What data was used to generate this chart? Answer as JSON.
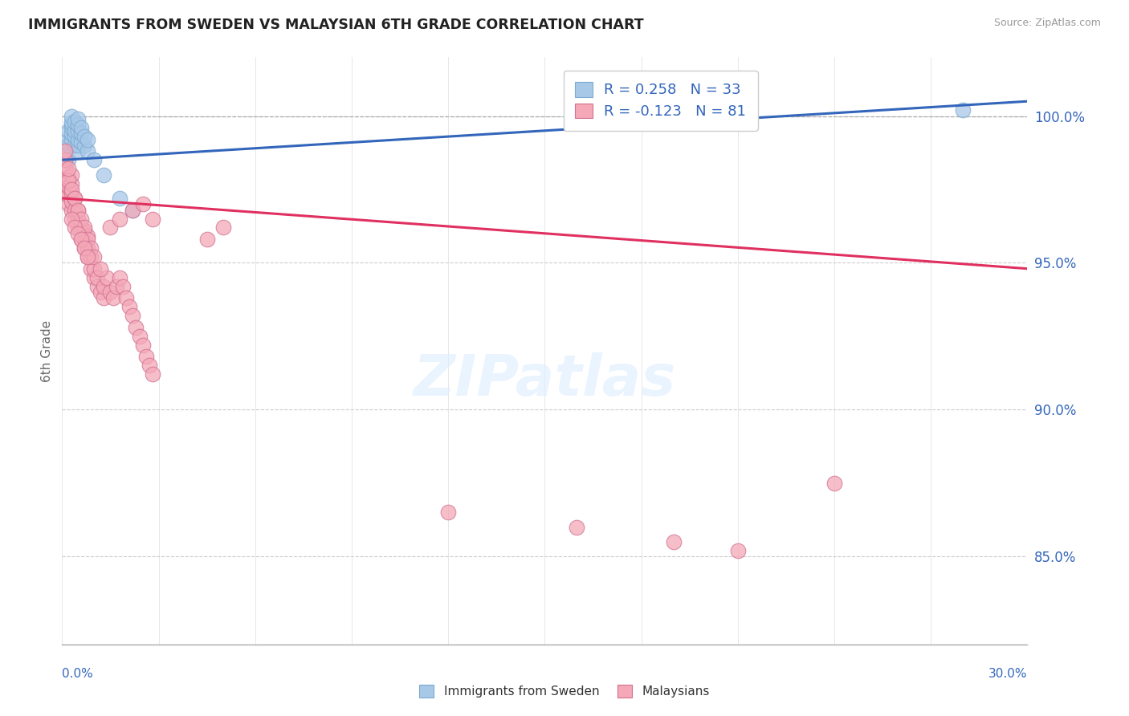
{
  "title": "IMMIGRANTS FROM SWEDEN VS MALAYSIAN 6TH GRADE CORRELATION CHART",
  "source": "Source: ZipAtlas.com",
  "ylabel": "6th Grade",
  "y_ticks": [
    85.0,
    90.0,
    95.0,
    100.0
  ],
  "x_min": 0.0,
  "x_max": 0.3,
  "y_min": 82.0,
  "y_max": 102.0,
  "blue_R": 0.258,
  "blue_N": 33,
  "pink_R": -0.123,
  "pink_N": 81,
  "blue_color": "#a8c8e8",
  "blue_line_color": "#3366bb",
  "pink_color": "#f4a8b8",
  "pink_line_color": "#e03060",
  "dashed_line_y": 100.0,
  "blue_line_x0": 0.0,
  "blue_line_y0": 98.5,
  "blue_line_x1": 0.3,
  "blue_line_y1": 100.5,
  "pink_line_x0": 0.0,
  "pink_line_y0": 97.2,
  "pink_line_x1": 0.3,
  "pink_line_y1": 94.8,
  "blue_scatter_x": [
    0.001,
    0.001,
    0.002,
    0.002,
    0.002,
    0.003,
    0.003,
    0.003,
    0.003,
    0.003,
    0.003,
    0.004,
    0.004,
    0.004,
    0.004,
    0.005,
    0.005,
    0.005,
    0.005,
    0.005,
    0.005,
    0.006,
    0.006,
    0.006,
    0.007,
    0.007,
    0.008,
    0.008,
    0.01,
    0.013,
    0.018,
    0.022,
    0.28
  ],
  "blue_scatter_y": [
    98.8,
    99.1,
    98.5,
    99.0,
    99.5,
    99.2,
    99.4,
    99.6,
    99.7,
    99.8,
    100.0,
    99.0,
    99.3,
    99.5,
    99.8,
    98.8,
    99.0,
    99.2,
    99.5,
    99.7,
    99.9,
    99.1,
    99.4,
    99.6,
    99.0,
    99.3,
    98.8,
    99.2,
    98.5,
    98.0,
    97.2,
    96.8,
    100.2
  ],
  "pink_scatter_x": [
    0.001,
    0.001,
    0.001,
    0.002,
    0.002,
    0.002,
    0.002,
    0.003,
    0.003,
    0.003,
    0.003,
    0.003,
    0.004,
    0.004,
    0.004,
    0.005,
    0.005,
    0.005,
    0.006,
    0.006,
    0.007,
    0.007,
    0.007,
    0.008,
    0.008,
    0.008,
    0.009,
    0.009,
    0.01,
    0.01,
    0.011,
    0.011,
    0.012,
    0.013,
    0.013,
    0.014,
    0.015,
    0.016,
    0.017,
    0.018,
    0.019,
    0.02,
    0.021,
    0.022,
    0.023,
    0.024,
    0.025,
    0.026,
    0.027,
    0.028,
    0.001,
    0.001,
    0.002,
    0.002,
    0.003,
    0.004,
    0.005,
    0.006,
    0.007,
    0.008,
    0.009,
    0.01,
    0.012,
    0.003,
    0.004,
    0.005,
    0.006,
    0.007,
    0.008,
    0.015,
    0.018,
    0.022,
    0.025,
    0.028,
    0.045,
    0.05,
    0.12,
    0.16,
    0.19,
    0.21,
    0.24
  ],
  "pink_scatter_y": [
    97.5,
    97.8,
    98.2,
    97.0,
    97.3,
    97.6,
    97.9,
    96.8,
    97.1,
    97.4,
    97.7,
    98.0,
    96.5,
    96.8,
    97.2,
    96.2,
    96.5,
    96.8,
    95.8,
    96.2,
    95.5,
    95.8,
    96.1,
    95.2,
    95.5,
    95.9,
    94.8,
    95.2,
    94.5,
    94.8,
    94.2,
    94.5,
    94.0,
    93.8,
    94.2,
    94.5,
    94.0,
    93.8,
    94.2,
    94.5,
    94.2,
    93.8,
    93.5,
    93.2,
    92.8,
    92.5,
    92.2,
    91.8,
    91.5,
    91.2,
    98.5,
    98.8,
    97.8,
    98.2,
    97.5,
    97.2,
    96.8,
    96.5,
    96.2,
    95.8,
    95.5,
    95.2,
    94.8,
    96.5,
    96.2,
    96.0,
    95.8,
    95.5,
    95.2,
    96.2,
    96.5,
    96.8,
    97.0,
    96.5,
    95.8,
    96.2,
    86.5,
    86.0,
    85.5,
    85.2,
    87.5
  ]
}
